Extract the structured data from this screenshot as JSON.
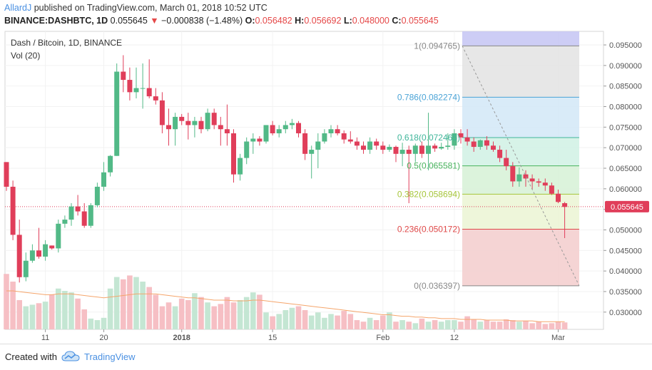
{
  "header": {
    "author": "AllardJ",
    "published_text": "published on TradingView.com, March 01, 2018 10:52 UTC",
    "symbol": "BINANCE:DASHBTC, 1D",
    "last": "0.055645",
    "change": "−0.000838 (−1.48%)",
    "o_label": "O:",
    "o": "0.056482",
    "h_label": "H:",
    "h": "0.056692",
    "l_label": "L:",
    "l": "0.048000",
    "c_label": "C:",
    "c": "0.055645"
  },
  "legend": {
    "title": "Dash / Bitcoin, 1D, BINANCE",
    "volume": "Vol (20)"
  },
  "footer": {
    "created_with": "Created with",
    "brand": "TradingView"
  },
  "colors": {
    "up": "#52b987",
    "down": "#e03e5a",
    "up_vol": "#c4e6d3",
    "down_vol": "#f6bfc4",
    "ma": "#f5a56b",
    "price_line": "#e03e5a"
  },
  "chart_data": {
    "type": "candlestick",
    "y_axis_ticks": [
      "0.095000",
      "0.090000",
      "0.085000",
      "0.080000",
      "0.075000",
      "0.070000",
      "0.065000",
      "0.060000",
      "0.055000",
      "0.050000",
      "0.045000",
      "0.040000",
      "0.035000",
      "0.030000"
    ],
    "ylim": [
      0.0258,
      0.0983
    ],
    "x_tick_labels": [
      {
        "i": 6,
        "label": "11"
      },
      {
        "i": 15,
        "label": "20"
      },
      {
        "i": 27,
        "label": "2018"
      },
      {
        "i": 41,
        "label": "15"
      },
      {
        "i": 58,
        "label": "Feb"
      },
      {
        "i": 69,
        "label": "12"
      },
      {
        "i": 85,
        "label": "Mar"
      }
    ],
    "current_price": "0.055645",
    "fib_levels": [
      {
        "ratio": "1",
        "value": "0.094765",
        "price": 0.094765,
        "color": "#888888",
        "fill": "#c8c8f4"
      },
      {
        "ratio": "0.786",
        "value": "0.082274",
        "price": 0.082274,
        "color": "#4aa3d6",
        "fill": "#e4e4e4"
      },
      {
        "ratio": "0.618",
        "value": "0.072465",
        "price": 0.072465,
        "color": "#3fb59a",
        "fill": "#d5e9f7"
      },
      {
        "ratio": "0.5",
        "value": "0.065581",
        "price": 0.065581,
        "color": "#47b25c",
        "fill": "#d3f2e6"
      },
      {
        "ratio": "0.382",
        "value": "0.058694",
        "price": 0.058694,
        "color": "#a6c53a",
        "fill": "#d8f2d8"
      },
      {
        "ratio": "0.236",
        "value": "0.050172",
        "price": 0.050172,
        "color": "#e04a4a",
        "fill": "#ecf5d6"
      },
      {
        "ratio": "0",
        "value": "0.036397",
        "price": 0.036397,
        "color": "#888888",
        "fill": "#f4cfcf"
      }
    ],
    "candles": [
      [
        0.0665,
        0.0665,
        0.0595,
        0.0605
      ],
      [
        0.0605,
        0.062,
        0.0475,
        0.0488
      ],
      [
        0.0488,
        0.0525,
        0.0372,
        0.0385
      ],
      [
        0.0385,
        0.0445,
        0.0375,
        0.0425
      ],
      [
        0.0425,
        0.0465,
        0.042,
        0.045
      ],
      [
        0.045,
        0.0505,
        0.043,
        0.0435
      ],
      [
        0.0435,
        0.0475,
        0.0425,
        0.0465
      ],
      [
        0.0462,
        0.0462,
        0.0452,
        0.0455
      ],
      [
        0.0455,
        0.0525,
        0.0445,
        0.0515
      ],
      [
        0.0515,
        0.0535,
        0.0505,
        0.0525
      ],
      [
        0.0525,
        0.0565,
        0.051,
        0.0557
      ],
      [
        0.0557,
        0.0585,
        0.0535,
        0.0545
      ],
      [
        0.0545,
        0.0565,
        0.0505,
        0.051
      ],
      [
        0.051,
        0.0565,
        0.0505,
        0.056
      ],
      [
        0.056,
        0.0615,
        0.0555,
        0.0605
      ],
      [
        0.0605,
        0.0665,
        0.0595,
        0.064
      ],
      [
        0.064,
        0.0682,
        0.063,
        0.068
      ],
      [
        0.068,
        0.0905,
        0.068,
        0.0885
      ],
      [
        0.0885,
        0.0925,
        0.0835,
        0.0865
      ],
      [
        0.0865,
        0.0895,
        0.0815,
        0.0835
      ],
      [
        0.0835,
        0.0895,
        0.082,
        0.0845
      ],
      [
        0.0845,
        0.0905,
        0.0795,
        0.0845
      ],
      [
        0.0845,
        0.0915,
        0.082,
        0.0825
      ],
      [
        0.0825,
        0.0845,
        0.0805,
        0.0815
      ],
      [
        0.0815,
        0.0835,
        0.0735,
        0.0755
      ],
      [
        0.0755,
        0.0795,
        0.0705,
        0.0745
      ],
      [
        0.0745,
        0.0785,
        0.0705,
        0.0775
      ],
      [
        0.0775,
        0.0782,
        0.0755,
        0.0765
      ],
      [
        0.0765,
        0.0785,
        0.072,
        0.0755
      ],
      [
        0.0755,
        0.0775,
        0.0725,
        0.0765
      ],
      [
        0.0765,
        0.0775,
        0.0735,
        0.0745
      ],
      [
        0.0745,
        0.0795,
        0.074,
        0.0785
      ],
      [
        0.0785,
        0.0795,
        0.0745,
        0.0755
      ],
      [
        0.0755,
        0.0775,
        0.0705,
        0.0745
      ],
      [
        0.0745,
        0.0805,
        0.0705,
        0.0735
      ],
      [
        0.0735,
        0.0745,
        0.0615,
        0.0635
      ],
      [
        0.0635,
        0.0685,
        0.062,
        0.0675
      ],
      [
        0.0675,
        0.0725,
        0.066,
        0.0715
      ],
      [
        0.0715,
        0.0735,
        0.0685,
        0.0722
      ],
      [
        0.0722,
        0.0728,
        0.0705,
        0.0715
      ],
      [
        0.0715,
        0.0755,
        0.071,
        0.0755
      ],
      [
        0.0755,
        0.0765,
        0.073,
        0.0735
      ],
      [
        0.0735,
        0.0755,
        0.0725,
        0.0745
      ],
      [
        0.0745,
        0.0765,
        0.0735,
        0.0755
      ],
      [
        0.0755,
        0.077,
        0.0745,
        0.076
      ],
      [
        0.076,
        0.0765,
        0.0725,
        0.0735
      ],
      [
        0.0735,
        0.0745,
        0.067,
        0.0685
      ],
      [
        0.0685,
        0.0705,
        0.0625,
        0.0695
      ],
      [
        0.0695,
        0.0735,
        0.065,
        0.0715
      ],
      [
        0.0715,
        0.0745,
        0.071,
        0.0735
      ],
      [
        0.0735,
        0.0755,
        0.0725,
        0.0745
      ],
      [
        0.0745,
        0.0755,
        0.073,
        0.0735
      ],
      [
        0.0735,
        0.0742,
        0.071,
        0.072
      ],
      [
        0.072,
        0.074,
        0.071,
        0.0715
      ],
      [
        0.0715,
        0.0725,
        0.0695,
        0.0705
      ],
      [
        0.0705,
        0.0715,
        0.0685,
        0.0695
      ],
      [
        0.0695,
        0.0725,
        0.0685,
        0.0715
      ],
      [
        0.0715,
        0.0722,
        0.0695,
        0.0705
      ],
      [
        0.0705,
        0.0715,
        0.0685,
        0.0695
      ],
      [
        0.0695,
        0.0708,
        0.069,
        0.0702
      ],
      [
        0.0702,
        0.0705,
        0.0665,
        0.0685
      ],
      [
        0.0685,
        0.0712,
        0.0655,
        0.0695
      ],
      [
        0.0695,
        0.0705,
        0.0565,
        0.0685
      ],
      [
        0.0685,
        0.071,
        0.0665,
        0.0705
      ],
      [
        0.0705,
        0.0715,
        0.0675,
        0.0685
      ],
      [
        0.0685,
        0.0785,
        0.0645,
        0.0705
      ],
      [
        0.0705,
        0.071,
        0.069,
        0.0698
      ],
      [
        0.0698,
        0.0712,
        0.0695,
        0.0702
      ],
      [
        0.0702,
        0.0735,
        0.0695,
        0.0705
      ],
      [
        0.0705,
        0.0745,
        0.0695,
        0.0735
      ],
      [
        0.0735,
        0.0745,
        0.071,
        0.0725
      ],
      [
        0.0725,
        0.0745,
        0.0705,
        0.0715
      ],
      [
        0.0715,
        0.0725,
        0.069,
        0.0702
      ],
      [
        0.0702,
        0.072,
        0.0695,
        0.0718
      ],
      [
        0.0718,
        0.0728,
        0.0695,
        0.0705
      ],
      [
        0.0705,
        0.0715,
        0.069,
        0.0695
      ],
      [
        0.0695,
        0.0705,
        0.0665,
        0.0675
      ],
      [
        0.0675,
        0.0695,
        0.0645,
        0.0655
      ],
      [
        0.0655,
        0.0665,
        0.0605,
        0.0618
      ],
      [
        0.0618,
        0.0652,
        0.0605,
        0.0635
      ],
      [
        0.0635,
        0.0645,
        0.0605,
        0.0625
      ],
      [
        0.0625,
        0.0635,
        0.0598,
        0.0618
      ],
      [
        0.0618,
        0.0625,
        0.0605,
        0.0615
      ],
      [
        0.0615,
        0.0625,
        0.0595,
        0.0608
      ],
      [
        0.0608,
        0.0615,
        0.0585,
        0.0588
      ],
      [
        0.0588,
        0.0598,
        0.0565,
        0.0568
      ],
      [
        0.0565,
        0.0568,
        0.048,
        0.0556
      ]
    ],
    "volumes": [
      0.72,
      0.62,
      0.38,
      0.3,
      0.32,
      0.34,
      0.36,
      0.45,
      0.53,
      0.5,
      0.48,
      0.4,
      0.26,
      0.14,
      0.12,
      0.15,
      0.53,
      0.68,
      0.65,
      0.7,
      0.68,
      0.62,
      0.55,
      0.45,
      0.3,
      0.35,
      0.3,
      0.4,
      0.38,
      0.47,
      0.42,
      0.35,
      0.3,
      0.33,
      0.42,
      0.35,
      0.38,
      0.42,
      0.48,
      0.45,
      0.22,
      0.17,
      0.2,
      0.25,
      0.28,
      0.3,
      0.25,
      0.18,
      0.22,
      0.15,
      0.2,
      0.18,
      0.24,
      0.2,
      0.12,
      0.1,
      0.15,
      0.12,
      0.18,
      0.22,
      0.1,
      0.12,
      0.1,
      0.08,
      0.14,
      0.1,
      0.12,
      0.1,
      0.12,
      0.12,
      0.1,
      0.17,
      0.13,
      0.1,
      0.12,
      0.1,
      0.1,
      0.13,
      0.12,
      0.1,
      0.11,
      0.08,
      0.1,
      0.07,
      0.08,
      0.1,
      0.09
    ],
    "volume_ma": [
      0.5,
      0.5,
      0.49,
      0.48,
      0.47,
      0.46,
      0.45,
      0.45,
      0.46,
      0.46,
      0.46,
      0.45,
      0.44,
      0.43,
      0.42,
      0.41,
      0.42,
      0.43,
      0.44,
      0.45,
      0.46,
      0.46,
      0.46,
      0.46,
      0.45,
      0.44,
      0.43,
      0.42,
      0.41,
      0.41,
      0.4,
      0.39,
      0.38,
      0.38,
      0.38,
      0.37,
      0.37,
      0.37,
      0.38,
      0.38,
      0.37,
      0.36,
      0.35,
      0.34,
      0.33,
      0.32,
      0.31,
      0.3,
      0.29,
      0.28,
      0.27,
      0.26,
      0.25,
      0.24,
      0.23,
      0.22,
      0.21,
      0.2,
      0.19,
      0.19,
      0.18,
      0.17,
      0.17,
      0.16,
      0.16,
      0.15,
      0.15,
      0.14,
      0.14,
      0.14,
      0.13,
      0.13,
      0.13,
      0.13,
      0.12,
      0.12,
      0.12,
      0.12,
      0.11,
      0.11,
      0.11,
      0.11,
      0.1,
      0.1,
      0.1,
      0.1,
      0.1
    ]
  }
}
